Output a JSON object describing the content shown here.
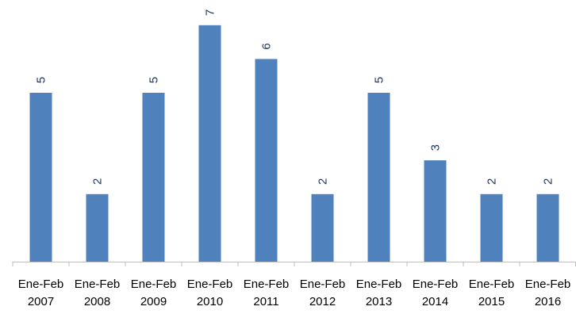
{
  "chart_data": {
    "type": "bar",
    "categories": [
      [
        "Ene-Feb",
        "2007"
      ],
      [
        "Ene-Feb",
        "2008"
      ],
      [
        "Ene-Feb",
        "2009"
      ],
      [
        "Ene-Feb",
        "2010"
      ],
      [
        "Ene-Feb",
        "2011"
      ],
      [
        "Ene-Feb",
        "2012"
      ],
      [
        "Ene-Feb",
        "2013"
      ],
      [
        "Ene-Feb",
        "2014"
      ],
      [
        "Ene-Feb",
        "2015"
      ],
      [
        "Ene-Feb",
        "2016"
      ]
    ],
    "values": [
      5,
      2,
      5,
      7,
      6,
      2,
      5,
      3,
      2,
      2
    ],
    "title": "",
    "xlabel": "",
    "ylabel": "",
    "ylim": [
      0,
      7
    ],
    "grid": false,
    "legend": "none",
    "data_labels": "rotated",
    "colors": {
      "bar": "#4f81bd",
      "data_label": "#1f3864",
      "axis": "#bfbfbf",
      "category_label": "#000000"
    }
  }
}
